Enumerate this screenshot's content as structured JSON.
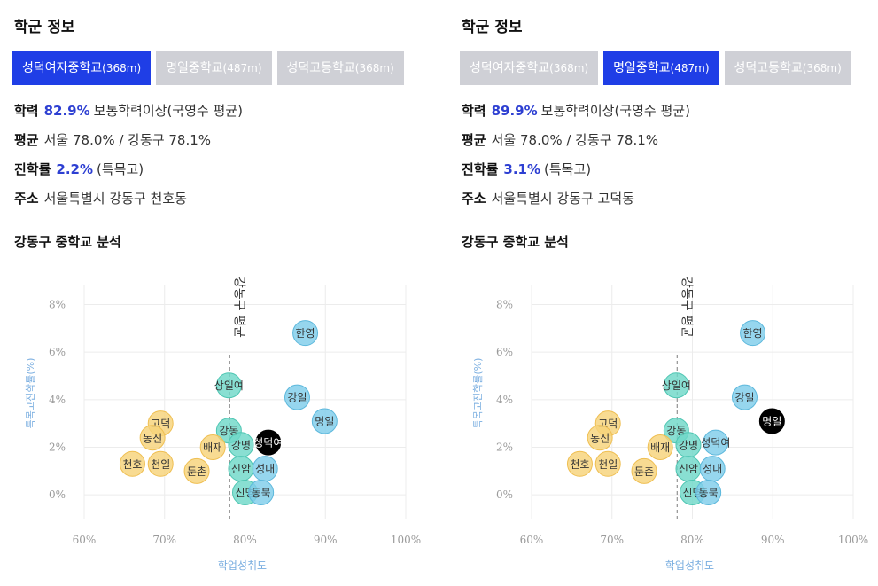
{
  "panels": [
    {
      "section_title": "학군 정보",
      "tabs": [
        {
          "name": "성덕여자중학교",
          "dist": "(368m)",
          "active": true
        },
        {
          "name": "명일중학교",
          "dist": "(487m)",
          "active": false
        },
        {
          "name": "성덕고등학교",
          "dist": "(368m)",
          "active": false
        }
      ],
      "academic_label": "학력",
      "academic_value": "82.9%",
      "academic_desc": "보통학력이상(국영수 평균)",
      "average_label": "평균",
      "average_text": "서울 78.0% / 강동구 78.1%",
      "advance_label": "진학률",
      "advance_value": "2.2%",
      "advance_desc": "(특목고)",
      "address_label": "주소",
      "address_text": "서울특별시 강동구 천호동",
      "analysis_title": "강동구 중학교 분석"
    },
    {
      "section_title": "학군 정보",
      "tabs": [
        {
          "name": "성덕여자중학교",
          "dist": "(368m)",
          "active": false
        },
        {
          "name": "명일중학교",
          "dist": "(487m)",
          "active": true
        },
        {
          "name": "성덕고등학교",
          "dist": "(368m)",
          "active": false
        }
      ],
      "academic_label": "학력",
      "academic_value": "89.9%",
      "academic_desc": "보통학력이상(국영수 평균)",
      "average_label": "평균",
      "average_text": "서울 78.0% / 강동구 78.1%",
      "advance_label": "진학률",
      "advance_value": "3.1%",
      "advance_desc": "(특목고)",
      "address_label": "주소",
      "address_text": "서울특별시 강동구 고덕동",
      "analysis_title": "강동구 중학교 분석"
    }
  ],
  "colors": {
    "tab_active": "#1f3ee6",
    "tab_inactive": "#cfd0d6",
    "highlight_text": "#2d3fd2",
    "bubble_blue": "#7fcdea",
    "bubble_teal": "#6fd8c8",
    "bubble_orange": "#f7d37a",
    "bubble_selected": "#000000",
    "axis_label": "#7aaee0"
  },
  "chart_data": [
    {
      "type": "scatter",
      "xlabel": "학업성취도",
      "ylabel": "특목고진학률(%)",
      "xlim": [
        60,
        100
      ],
      "ylim": [
        -1,
        8.8
      ],
      "x_ticks": [
        60,
        70,
        80,
        90,
        100
      ],
      "x_tick_labels": [
        "60%",
        "70%",
        "80%",
        "90%",
        "100%"
      ],
      "y_ticks": [
        0,
        2,
        4,
        6,
        8
      ],
      "y_tick_labels": [
        "0%",
        "2%",
        "4%",
        "6%",
        "8%"
      ],
      "grid": true,
      "reference_line": {
        "x": 78.1,
        "label": "강동구 평균"
      },
      "points": [
        {
          "label": "한영",
          "x": 87.5,
          "y": 6.8,
          "group": "blue"
        },
        {
          "label": "상일여",
          "x": 78.0,
          "y": 4.6,
          "group": "teal"
        },
        {
          "label": "강일",
          "x": 86.5,
          "y": 4.1,
          "group": "blue"
        },
        {
          "label": "명일",
          "x": 89.9,
          "y": 3.1,
          "group": "blue"
        },
        {
          "label": "고덕",
          "x": 69.5,
          "y": 3.0,
          "group": "orange"
        },
        {
          "label": "강동",
          "x": 78.0,
          "y": 2.7,
          "group": "teal"
        },
        {
          "label": "동신",
          "x": 68.5,
          "y": 2.4,
          "group": "orange"
        },
        {
          "label": "성덕여",
          "x": 82.9,
          "y": 2.2,
          "group": "selected"
        },
        {
          "label": "강명",
          "x": 79.5,
          "y": 2.1,
          "group": "teal"
        },
        {
          "label": "배재",
          "x": 76.0,
          "y": 2.0,
          "group": "orange"
        },
        {
          "label": "천호",
          "x": 66.0,
          "y": 1.3,
          "group": "orange"
        },
        {
          "label": "천일",
          "x": 69.5,
          "y": 1.3,
          "group": "orange"
        },
        {
          "label": "신암",
          "x": 79.5,
          "y": 1.1,
          "group": "teal"
        },
        {
          "label": "성내",
          "x": 82.5,
          "y": 1.1,
          "group": "blue"
        },
        {
          "label": "둔촌",
          "x": 74.0,
          "y": 1.0,
          "group": "orange"
        },
        {
          "label": "신명",
          "x": 80.0,
          "y": 0.1,
          "group": "teal"
        },
        {
          "label": "동북",
          "x": 82.0,
          "y": 0.1,
          "group": "blue"
        }
      ]
    },
    {
      "type": "scatter",
      "xlabel": "학업성취도",
      "ylabel": "특목고진학률(%)",
      "xlim": [
        60,
        100
      ],
      "ylim": [
        -1,
        8.8
      ],
      "x_ticks": [
        60,
        70,
        80,
        90,
        100
      ],
      "x_tick_labels": [
        "60%",
        "70%",
        "80%",
        "90%",
        "100%"
      ],
      "y_ticks": [
        0,
        2,
        4,
        6,
        8
      ],
      "y_tick_labels": [
        "0%",
        "2%",
        "4%",
        "6%",
        "8%"
      ],
      "grid": true,
      "reference_line": {
        "x": 78.1,
        "label": "강동구 평균"
      },
      "points": [
        {
          "label": "한영",
          "x": 87.5,
          "y": 6.8,
          "group": "blue"
        },
        {
          "label": "상일여",
          "x": 78.0,
          "y": 4.6,
          "group": "teal"
        },
        {
          "label": "강일",
          "x": 86.5,
          "y": 4.1,
          "group": "blue"
        },
        {
          "label": "명일",
          "x": 89.9,
          "y": 3.1,
          "group": "selected"
        },
        {
          "label": "고덕",
          "x": 69.5,
          "y": 3.0,
          "group": "orange"
        },
        {
          "label": "강동",
          "x": 78.0,
          "y": 2.7,
          "group": "teal"
        },
        {
          "label": "동신",
          "x": 68.5,
          "y": 2.4,
          "group": "orange"
        },
        {
          "label": "성덕여",
          "x": 82.9,
          "y": 2.2,
          "group": "blue"
        },
        {
          "label": "강명",
          "x": 79.5,
          "y": 2.1,
          "group": "teal"
        },
        {
          "label": "배재",
          "x": 76.0,
          "y": 2.0,
          "group": "orange"
        },
        {
          "label": "천호",
          "x": 66.0,
          "y": 1.3,
          "group": "orange"
        },
        {
          "label": "천일",
          "x": 69.5,
          "y": 1.3,
          "group": "orange"
        },
        {
          "label": "신암",
          "x": 79.5,
          "y": 1.1,
          "group": "teal"
        },
        {
          "label": "성내",
          "x": 82.5,
          "y": 1.1,
          "group": "blue"
        },
        {
          "label": "둔촌",
          "x": 74.0,
          "y": 1.0,
          "group": "orange"
        },
        {
          "label": "신명",
          "x": 80.0,
          "y": 0.1,
          "group": "teal"
        },
        {
          "label": "동북",
          "x": 82.0,
          "y": 0.1,
          "group": "blue"
        }
      ]
    }
  ]
}
